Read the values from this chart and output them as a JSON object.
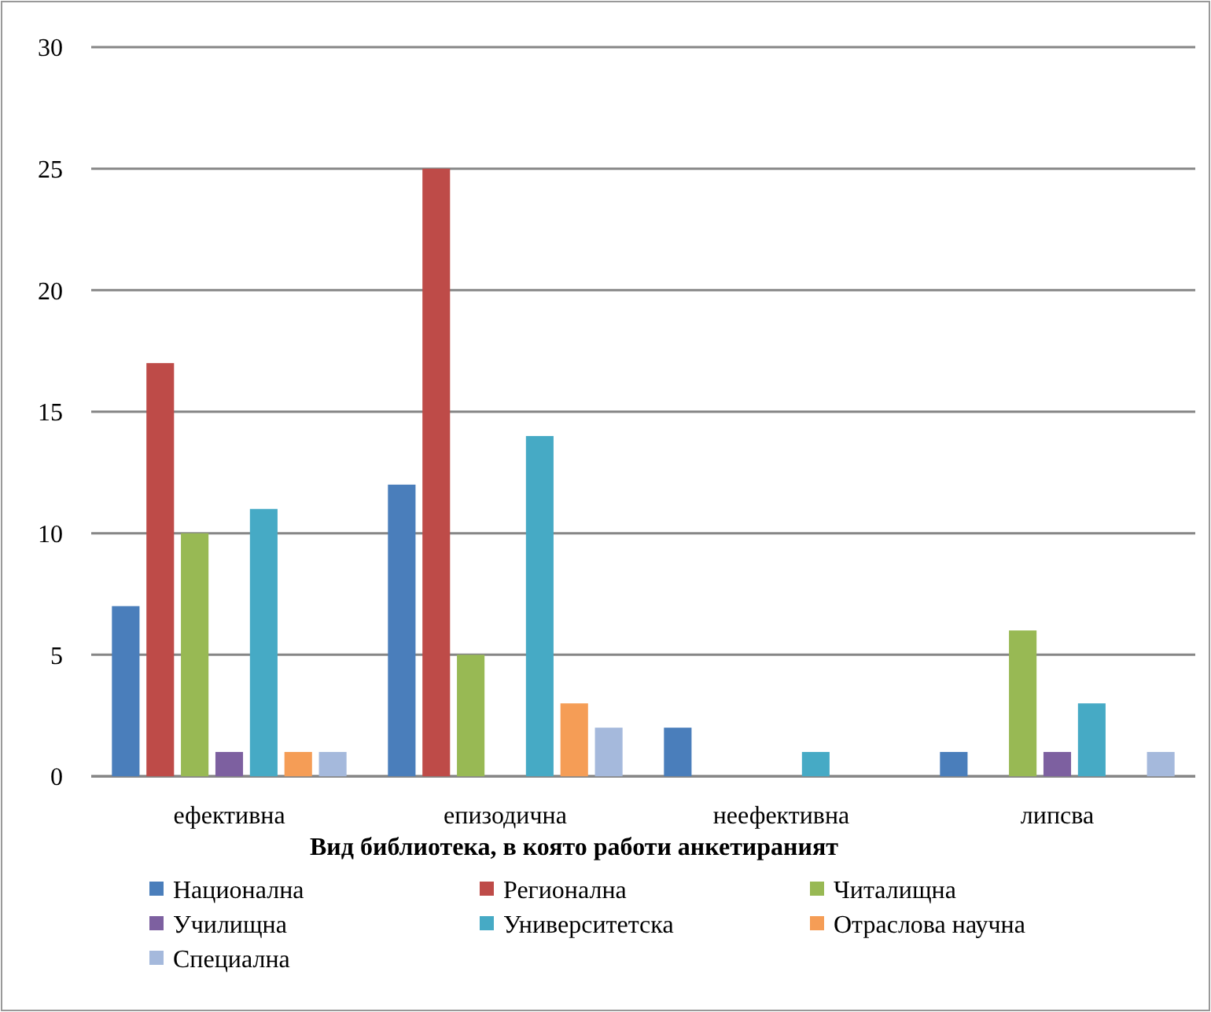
{
  "chart_data": {
    "type": "bar",
    "legend_title": "Вид библиотека, в която работи анкетираният",
    "categories": [
      "ефективна",
      "епизодична",
      "неефективна",
      "липсва"
    ],
    "series": [
      {
        "name": "Национална",
        "color": "#4a7ebb",
        "values": [
          7,
          12,
          2,
          1
        ]
      },
      {
        "name": "Регионална",
        "color": "#be4b48",
        "values": [
          17,
          25,
          0,
          0
        ]
      },
      {
        "name": "Читалищна",
        "color": "#98b954",
        "values": [
          10,
          5,
          0,
          6
        ]
      },
      {
        "name": "Училищна",
        "color": "#7d60a0",
        "values": [
          1,
          0,
          0,
          1
        ]
      },
      {
        "name": "Университетска",
        "color": "#46aac5",
        "values": [
          11,
          14,
          1,
          3
        ]
      },
      {
        "name": "Отраслова научна",
        "color": "#f59d56",
        "values": [
          1,
          3,
          0,
          0
        ]
      },
      {
        "name": "Специална",
        "color": "#a5b9dc",
        "values": [
          1,
          2,
          0,
          1
        ]
      }
    ],
    "ylim": [
      0,
      30
    ],
    "yticks": [
      0,
      5,
      10,
      15,
      20,
      25,
      30
    ],
    "grid": "y",
    "legend": "bottom"
  }
}
